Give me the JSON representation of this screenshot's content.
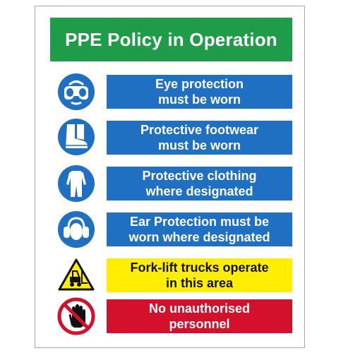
{
  "title": {
    "text": "PPE Policy in Operation",
    "color": "#1e9c48"
  },
  "colors": {
    "mandatory": "#1f6fc2",
    "warning": "#ffee00",
    "prohibition": "#d2122c"
  },
  "rows": [
    {
      "icon": "goggles-icon",
      "text": "Eye protection\nmust be worn",
      "bg": "#1f6fc2",
      "fg": "#ffffff"
    },
    {
      "icon": "safety-boot-icon",
      "text": "Protective footwear\nmust be worn",
      "bg": "#1f6fc2",
      "fg": "#ffffff"
    },
    {
      "icon": "overalls-icon",
      "text": "Protective clothing\nwhere designated",
      "bg": "#1f6fc2",
      "fg": "#ffffff"
    },
    {
      "icon": "ear-defenders-icon",
      "text": "Ear Protection must be\nworn where designated",
      "bg": "#1f6fc2",
      "fg": "#ffffff"
    },
    {
      "icon": "forklift-warning-icon",
      "text": "Fork-lift trucks operate\nin this area",
      "bg": "#ffee00",
      "fg": "#111111"
    },
    {
      "icon": "no-entry-hand-icon",
      "text": "No unauthorised\npersonnel",
      "bg": "#d2122c",
      "fg": "#ffffff"
    }
  ]
}
